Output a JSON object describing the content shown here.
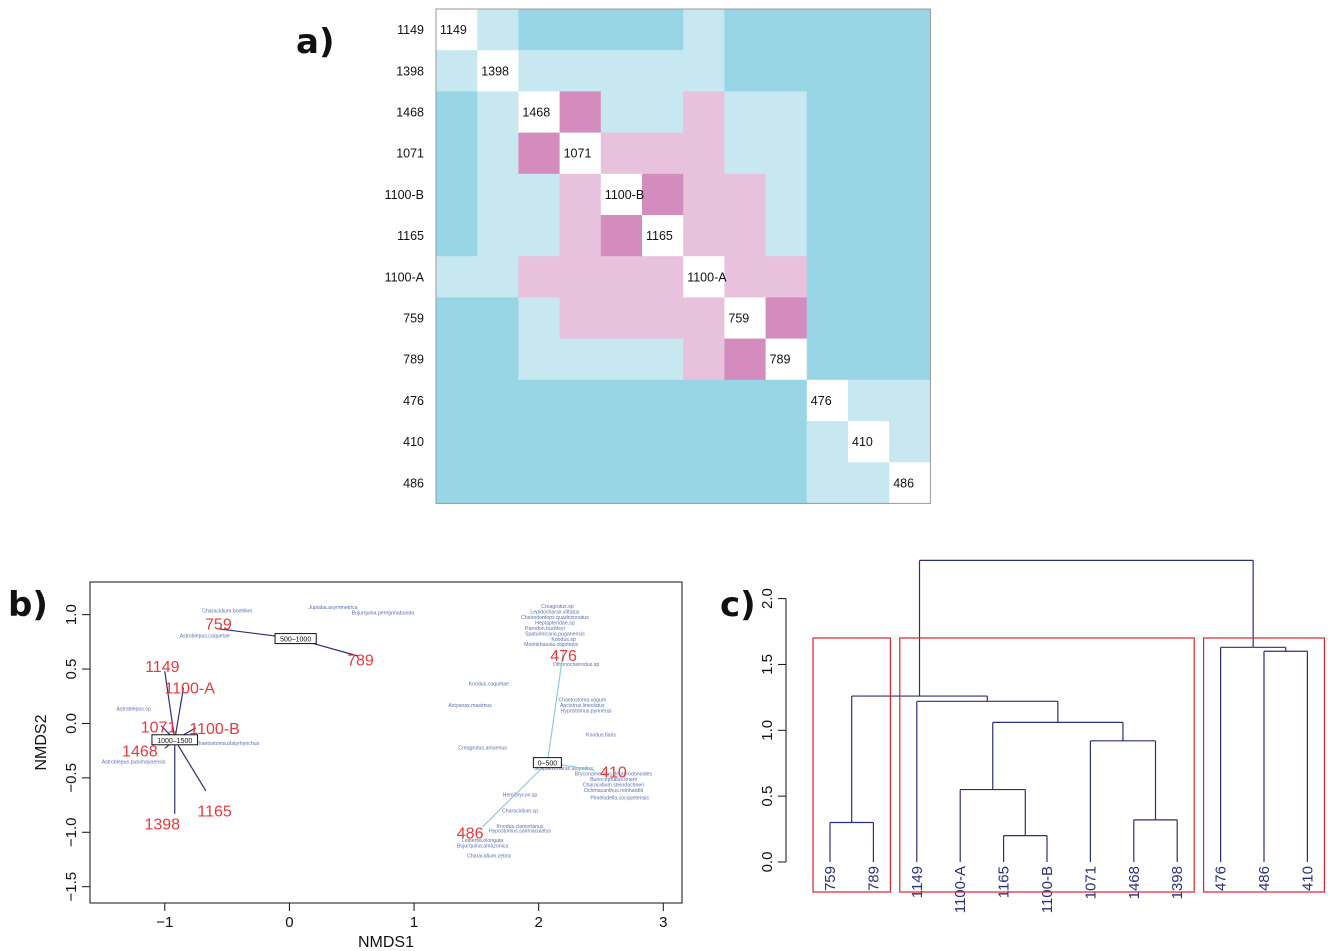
{
  "panels": {
    "a": "a)",
    "b": "b)",
    "c": "c)"
  },
  "colors": {
    "dark_blue": "#98d6e5",
    "light_blue": "#c7e8f1",
    "light_pink": "#e8c1dc",
    "dark_pink": "#d38cbd",
    "diagonal": "#ffffff",
    "site_label": "#e8393d",
    "species_label": "#5a6fb0",
    "segment_dark": "#2b2f7a",
    "segment_light": "#8ec9df",
    "dendro_line": "#2b2f7a",
    "cluster_box": "#d9262c"
  },
  "chart_data": [
    {
      "type": "heatmap",
      "id": "a",
      "labels": [
        "1149",
        "1398",
        "1468",
        "1071",
        "1100-B",
        "1165",
        "1100-A",
        "759",
        "789",
        "476",
        "410",
        "486"
      ],
      "level_legend": {
        "0": "diagonal",
        "1": "dark_blue",
        "2": "light_blue",
        "3": "light_pink",
        "4": "dark_pink"
      },
      "matrix": [
        [
          0,
          2,
          1,
          1,
          1,
          1,
          2,
          1,
          1,
          1,
          1,
          1
        ],
        [
          2,
          0,
          2,
          2,
          2,
          2,
          2,
          1,
          1,
          1,
          1,
          1
        ],
        [
          1,
          2,
          0,
          4,
          2,
          2,
          3,
          2,
          2,
          1,
          1,
          1
        ],
        [
          1,
          2,
          4,
          0,
          3,
          3,
          3,
          2,
          2,
          1,
          1,
          1
        ],
        [
          1,
          2,
          2,
          3,
          0,
          4,
          3,
          3,
          2,
          1,
          1,
          1
        ],
        [
          1,
          2,
          2,
          3,
          4,
          0,
          3,
          3,
          2,
          1,
          1,
          1
        ],
        [
          2,
          2,
          3,
          3,
          3,
          3,
          0,
          3,
          3,
          1,
          1,
          1
        ],
        [
          1,
          1,
          2,
          3,
          3,
          3,
          3,
          0,
          4,
          1,
          1,
          1
        ],
        [
          1,
          1,
          2,
          2,
          2,
          2,
          3,
          4,
          0,
          1,
          1,
          1
        ],
        [
          1,
          1,
          1,
          1,
          1,
          1,
          1,
          1,
          1,
          0,
          2,
          2
        ],
        [
          1,
          1,
          1,
          1,
          1,
          1,
          1,
          1,
          1,
          2,
          0,
          2
        ],
        [
          1,
          1,
          1,
          1,
          1,
          1,
          1,
          1,
          1,
          2,
          2,
          0
        ]
      ]
    },
    {
      "type": "scatter",
      "id": "b",
      "xlabel": "NMDS1",
      "ylabel": "NMDS2",
      "xlim": [
        -1.6,
        3.15
      ],
      "ylim": [
        -1.65,
        1.3
      ],
      "xticks": [
        -1,
        0,
        1,
        2,
        3
      ],
      "yticks": [
        -1.5,
        -1.0,
        -0.5,
        0.0,
        0.5,
        1.0
      ],
      "groups": [
        {
          "label": "500–1000",
          "x": 0.05,
          "y": 0.78,
          "line": "dark",
          "sites": [
            {
              "name": "759",
              "x": -0.57,
              "y": 0.87
            },
            {
              "name": "789",
              "x": 0.55,
              "y": 0.62
            }
          ]
        },
        {
          "label": "1000–1500",
          "x": -0.92,
          "y": -0.15,
          "line": "dark",
          "sites": [
            {
              "name": "1149",
              "x": -1.0,
              "y": 0.48
            },
            {
              "name": "1100-A",
              "x": -0.85,
              "y": 0.33
            },
            {
              "name": "1071",
              "x": -1.03,
              "y": -0.02
            },
            {
              "name": "1100-B",
              "x": -0.75,
              "y": -0.04
            },
            {
              "name": "1468",
              "x": -1.0,
              "y": -0.23
            },
            {
              "name": "1398",
              "x": -0.92,
              "y": -0.83
            },
            {
              "name": "1165",
              "x": -0.67,
              "y": -0.62
            }
          ]
        },
        {
          "label": "0–500",
          "x": 2.07,
          "y": -0.36,
          "line": "light",
          "sites": [
            {
              "name": "476",
              "x": 2.2,
              "y": 0.68
            },
            {
              "name": "410",
              "x": 2.45,
              "y": -0.43
            },
            {
              "name": "486",
              "x": 1.55,
              "y": -0.95
            }
          ]
        }
      ],
      "site_label_positions": {
        "759": {
          "x": -0.57,
          "y": 0.92
        },
        "789": {
          "x": 0.57,
          "y": 0.59
        },
        "1149": {
          "x": -1.02,
          "y": 0.53
        },
        "1100-A": {
          "x": -0.8,
          "y": 0.33
        },
        "1071": {
          "x": -1.05,
          "y": -0.03
        },
        "1100-B": {
          "x": -0.6,
          "y": -0.04
        },
        "1468": {
          "x": -1.2,
          "y": -0.25
        },
        "1398": {
          "x": -1.02,
          "y": -0.92
        },
        "1165": {
          "x": -0.6,
          "y": -0.8
        },
        "476": {
          "x": 2.2,
          "y": 0.63
        },
        "410": {
          "x": 2.6,
          "y": -0.44
        },
        "486": {
          "x": 1.45,
          "y": -1.0
        }
      },
      "species": [
        {
          "name": "Characidium.boehlkei",
          "x": -0.5,
          "y": 1.02
        },
        {
          "name": "Jupiaba.asymmetrica",
          "x": 0.35,
          "y": 1.05
        },
        {
          "name": "Bujurquina.peregrinabunda",
          "x": 0.75,
          "y": 1.0
        },
        {
          "name": "Astroblepus.caquetae",
          "x": -0.68,
          "y": 0.79
        },
        {
          "name": "Creagrutus.sp",
          "x": 2.15,
          "y": 1.06
        },
        {
          "name": "Lepidocharax.vittatus",
          "x": 2.13,
          "y": 1.01
        },
        {
          "name": "Cheirodontops.quadrizonatus",
          "x": 2.13,
          "y": 0.96
        },
        {
          "name": "Heptapteridae.sp",
          "x": 2.13,
          "y": 0.91
        },
        {
          "name": "Parodon.buckleyi",
          "x": 2.05,
          "y": 0.86
        },
        {
          "name": "Spatuloricaria.puganensis",
          "x": 2.13,
          "y": 0.81
        },
        {
          "name": "Knodus.sp",
          "x": 2.2,
          "y": 0.76
        },
        {
          "name": "Moenkhausia.oligolepis",
          "x": 2.1,
          "y": 0.71
        },
        {
          "name": "Othonocheirodus.sp",
          "x": 2.3,
          "y": 0.53
        },
        {
          "name": "Knodus.caquetae",
          "x": 1.6,
          "y": 0.35
        },
        {
          "name": "Chaetostoma.vagum",
          "x": 2.35,
          "y": 0.2
        },
        {
          "name": "Astyanax.maximus",
          "x": 1.45,
          "y": 0.15
        },
        {
          "name": "Ancistrus.lineolatus",
          "x": 2.35,
          "y": 0.15
        },
        {
          "name": "Hypostomus.pyrineusi",
          "x": 2.38,
          "y": 0.1
        },
        {
          "name": "Astroblepus.sp",
          "x": -1.25,
          "y": 0.12
        },
        {
          "name": "Knodus.tiaris",
          "x": 2.5,
          "y": -0.12
        },
        {
          "name": "Chaetostoma.platyrhynchus",
          "x": -0.5,
          "y": -0.2
        },
        {
          "name": "Creagrutus.amoenus",
          "x": 1.55,
          "y": -0.24
        },
        {
          "name": "Astroblepus.putumayoensis",
          "x": -1.25,
          "y": -0.37
        },
        {
          "name": "Scopaeocharax.atopodus",
          "x": 2.2,
          "y": -0.43
        },
        {
          "name": "Bryconamericus.deuterodonoides",
          "x": 2.6,
          "y": -0.48
        },
        {
          "name": "Bunocephalus.knerii",
          "x": 2.6,
          "y": -0.53
        },
        {
          "name": "Characidium.steindachneri",
          "x": 2.6,
          "y": -0.58
        },
        {
          "name": "Ochmacanthus.reinhardtii",
          "x": 2.6,
          "y": -0.63
        },
        {
          "name": "Pimelodella.cocquetensis",
          "x": 2.65,
          "y": -0.7
        },
        {
          "name": "Hemibrycon.sp",
          "x": 1.85,
          "y": -0.67
        },
        {
          "name": "Characidium.sp",
          "x": 1.85,
          "y": -0.82
        },
        {
          "name": "Knodus.clamorianus",
          "x": 1.85,
          "y": -0.96
        },
        {
          "name": "Hypostomus.sarimaculatus",
          "x": 1.85,
          "y": -1.0
        },
        {
          "name": "Leibertia.elongata",
          "x": 1.55,
          "y": -1.09
        },
        {
          "name": "Bujurquina.amazonica",
          "x": 1.55,
          "y": -1.14
        },
        {
          "name": "Characidium.zebra",
          "x": 1.6,
          "y": -1.23
        }
      ]
    },
    {
      "type": "dendrogram",
      "id": "c",
      "ylim": [
        0,
        2.4
      ],
      "yticks": [
        0.0,
        0.5,
        1.0,
        1.5,
        2.0
      ],
      "leaves": [
        "759",
        "789",
        "1149",
        "1100-A",
        "1165",
        "1100-B",
        "1071",
        "1468",
        "1398",
        "476",
        "486",
        "410"
      ],
      "merges": [
        {
          "a": "L0",
          "b": "L1",
          "h": 0.3
        },
        {
          "a": "L4",
          "b": "L5",
          "h": 0.2
        },
        {
          "a": "L3",
          "b": "N1",
          "h": 0.55
        },
        {
          "a": "L7",
          "b": "L8",
          "h": 0.32
        },
        {
          "a": "L6",
          "b": "N3",
          "h": 0.92
        },
        {
          "a": "N2",
          "b": "N4",
          "h": 1.06
        },
        {
          "a": "L2",
          "b": "N5",
          "h": 1.22
        },
        {
          "a": "N0",
          "b": "N6",
          "h": 1.26
        },
        {
          "a": "L10",
          "b": "L11",
          "h": 1.6
        },
        {
          "a": "L9",
          "b": "N8",
          "h": 1.63
        },
        {
          "a": "N7",
          "b": "N9",
          "h": 2.29
        }
      ],
      "clusters": [
        [
          0,
          1
        ],
        [
          2,
          8
        ],
        [
          9,
          11
        ]
      ]
    }
  ]
}
